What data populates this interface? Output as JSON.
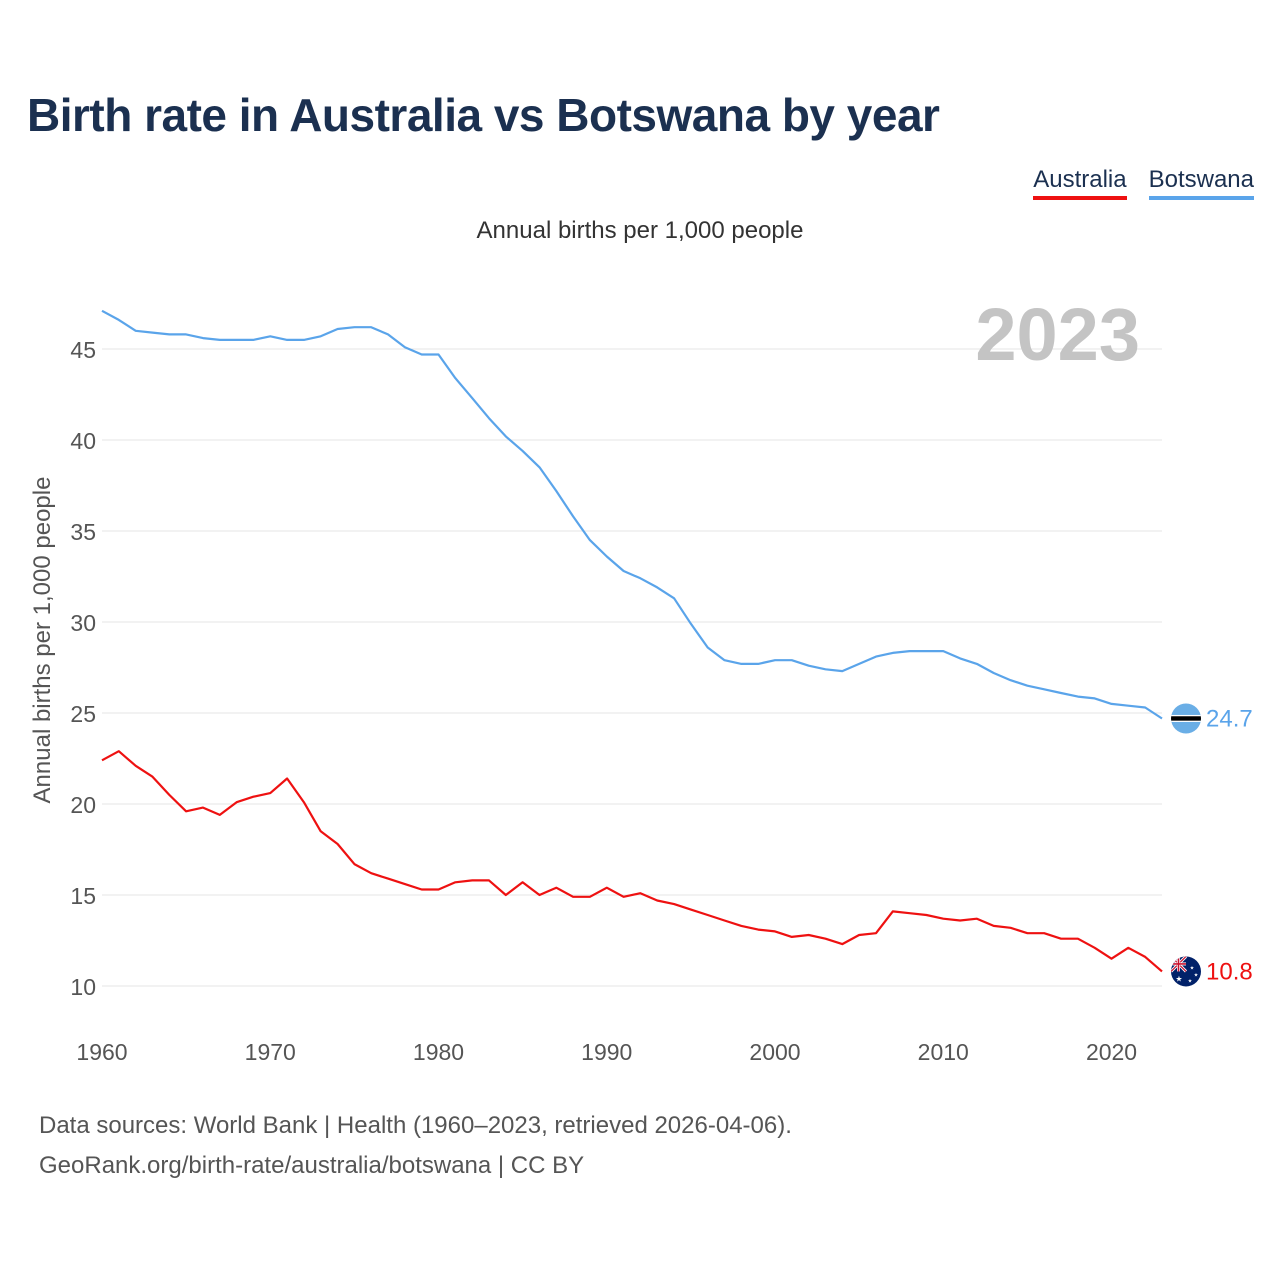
{
  "title": "Birth rate in Australia vs Botswana by year",
  "subtitle": "Annual births per 1,000 people",
  "legend": [
    {
      "label": "Australia",
      "color": "#ee1111"
    },
    {
      "label": "Botswana",
      "color": "#5aa4ea"
    }
  ],
  "year_label": "2023",
  "footer": {
    "line1": "Data sources: World Bank | Health (1960–2023, retrieved 2026-04-06).",
    "line2": "GeoRank.org/birth-rate/australia/botswana | CC BY"
  },
  "chart_data": {
    "type": "line",
    "title": "Birth rate in Australia vs Botswana by year",
    "ylabel": "Annual births per 1,000 people",
    "xlabel": "",
    "xlim": [
      1960,
      2023
    ],
    "ylim": [
      8,
      48
    ],
    "yticks": [
      10,
      15,
      20,
      25,
      30,
      35,
      40,
      45
    ],
    "xticks": [
      1960,
      1970,
      1980,
      1990,
      2000,
      2010,
      2020
    ],
    "x": [
      1960,
      1961,
      1962,
      1963,
      1964,
      1965,
      1966,
      1967,
      1968,
      1969,
      1970,
      1971,
      1972,
      1973,
      1974,
      1975,
      1976,
      1977,
      1978,
      1979,
      1980,
      1981,
      1982,
      1983,
      1984,
      1985,
      1986,
      1987,
      1988,
      1989,
      1990,
      1991,
      1992,
      1993,
      1994,
      1995,
      1996,
      1997,
      1998,
      1999,
      2000,
      2001,
      2002,
      2003,
      2004,
      2005,
      2006,
      2007,
      2008,
      2009,
      2010,
      2011,
      2012,
      2013,
      2014,
      2015,
      2016,
      2017,
      2018,
      2019,
      2020,
      2021,
      2022,
      2023
    ],
    "series": [
      {
        "name": "Botswana",
        "color": "#5aa4ea",
        "end_label": "24.7",
        "values": [
          47.1,
          46.6,
          46.0,
          45.9,
          45.8,
          45.8,
          45.6,
          45.5,
          45.5,
          45.5,
          45.7,
          45.5,
          45.5,
          45.7,
          46.1,
          46.2,
          46.2,
          45.8,
          45.1,
          44.7,
          44.7,
          43.4,
          42.3,
          41.2,
          40.2,
          39.4,
          38.5,
          37.2,
          35.8,
          34.5,
          33.6,
          32.8,
          32.4,
          31.9,
          31.3,
          29.9,
          28.6,
          27.9,
          27.7,
          27.7,
          27.9,
          27.9,
          27.6,
          27.4,
          27.3,
          27.7,
          28.1,
          28.3,
          28.4,
          28.4,
          28.4,
          28.0,
          27.7,
          27.2,
          26.8,
          26.5,
          26.3,
          26.1,
          25.9,
          25.8,
          25.5,
          25.4,
          25.3,
          24.7
        ]
      },
      {
        "name": "Australia",
        "color": "#ee1111",
        "end_label": "10.8",
        "values": [
          22.4,
          22.9,
          22.1,
          21.5,
          20.5,
          19.6,
          19.8,
          19.4,
          20.1,
          20.4,
          20.6,
          21.4,
          20.1,
          18.5,
          17.8,
          16.7,
          16.2,
          15.9,
          15.6,
          15.3,
          15.3,
          15.7,
          15.8,
          15.8,
          15.0,
          15.7,
          15.0,
          15.4,
          14.9,
          14.9,
          15.4,
          14.9,
          15.1,
          14.7,
          14.5,
          14.2,
          13.9,
          13.6,
          13.3,
          13.1,
          13.0,
          12.7,
          12.8,
          12.6,
          12.3,
          12.8,
          12.9,
          14.1,
          14.0,
          13.9,
          13.7,
          13.6,
          13.7,
          13.3,
          13.2,
          12.9,
          12.9,
          12.6,
          12.6,
          12.1,
          11.5,
          12.1,
          11.6,
          10.8
        ]
      }
    ]
  }
}
